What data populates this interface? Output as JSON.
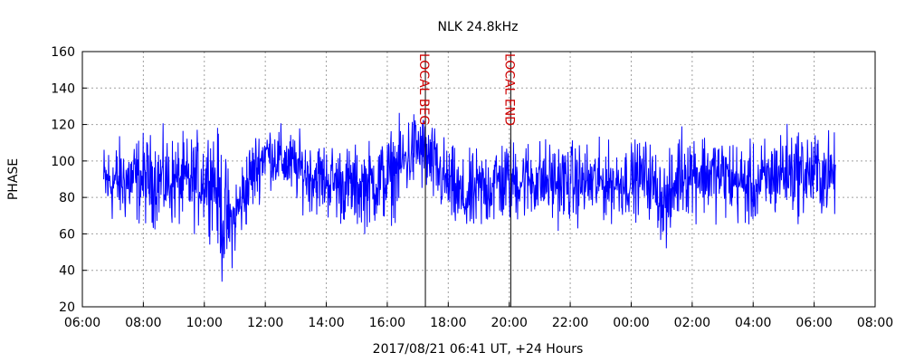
{
  "chart_data": {
    "type": "line",
    "title": "NLK 24.8kHz",
    "xlabel": "2017/08/21 06:41 UT, +24 Hours",
    "ylabel": "PHASE",
    "xlim": [
      6,
      32
    ],
    "ylim": [
      20,
      160
    ],
    "x_ticks": [
      "06:00",
      "08:00",
      "10:00",
      "12:00",
      "14:00",
      "16:00",
      "18:00",
      "20:00",
      "22:00",
      "00:00",
      "02:00",
      "04:00",
      "06:00",
      "08:00"
    ],
    "y_ticks": [
      "20",
      "40",
      "60",
      "80",
      "100",
      "120",
      "140",
      "160"
    ],
    "grid": true,
    "series": [
      {
        "color": "#0000ff",
        "x_start": 6.7,
        "x_end": 30.7,
        "envelope": [
          {
            "x": 6.7,
            "mean": 88,
            "amp": 20
          },
          {
            "x": 8.0,
            "mean": 90,
            "amp": 22
          },
          {
            "x": 9.5,
            "mean": 88,
            "amp": 22
          },
          {
            "x": 10.3,
            "mean": 92,
            "amp": 25
          },
          {
            "x": 10.6,
            "mean": 70,
            "amp": 35
          },
          {
            "x": 10.9,
            "mean": 65,
            "amp": 20
          },
          {
            "x": 11.5,
            "mean": 90,
            "amp": 20
          },
          {
            "x": 12.0,
            "mean": 105,
            "amp": 15
          },
          {
            "x": 13.5,
            "mean": 92,
            "amp": 18
          },
          {
            "x": 15.0,
            "mean": 85,
            "amp": 20
          },
          {
            "x": 16.0,
            "mean": 90,
            "amp": 22
          },
          {
            "x": 17.0,
            "mean": 108,
            "amp": 20
          },
          {
            "x": 17.6,
            "mean": 95,
            "amp": 20
          },
          {
            "x": 18.5,
            "mean": 78,
            "amp": 20
          },
          {
            "x": 19.5,
            "mean": 88,
            "amp": 22
          },
          {
            "x": 20.5,
            "mean": 90,
            "amp": 20
          },
          {
            "x": 22.0,
            "mean": 88,
            "amp": 20
          },
          {
            "x": 23.5,
            "mean": 88,
            "amp": 18
          },
          {
            "x": 24.5,
            "mean": 92,
            "amp": 18
          },
          {
            "x": 25.2,
            "mean": 75,
            "amp": 22
          },
          {
            "x": 25.6,
            "mean": 95,
            "amp": 22
          },
          {
            "x": 27.0,
            "mean": 92,
            "amp": 20
          },
          {
            "x": 28.0,
            "mean": 85,
            "amp": 20
          },
          {
            "x": 29.0,
            "mean": 95,
            "amp": 22
          },
          {
            "x": 30.7,
            "mean": 92,
            "amp": 20
          }
        ]
      }
    ],
    "markers": [
      {
        "label": "LOCAL BEG",
        "x": 17.25,
        "color": "#cc0000"
      },
      {
        "label": "LOCAL END",
        "x": 20.05,
        "color": "#cc0000"
      }
    ]
  }
}
